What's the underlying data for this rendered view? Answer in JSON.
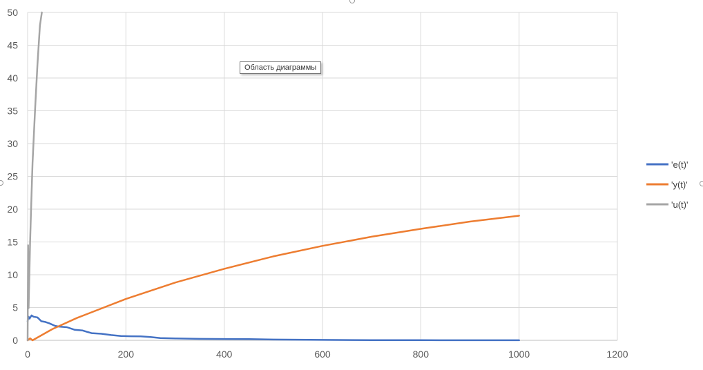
{
  "tooltip": {
    "text": "Область диаграммы"
  },
  "chart_data": {
    "type": "line",
    "title": "",
    "xlabel": "",
    "ylabel": "",
    "xlim": [
      0,
      1200
    ],
    "ylim": [
      0,
      50
    ],
    "xticks": [
      0,
      200,
      400,
      600,
      800,
      1000,
      1200
    ],
    "yticks": [
      0,
      5,
      10,
      15,
      20,
      25,
      30,
      35,
      40,
      45,
      50
    ],
    "grid": true,
    "legend_position": "right",
    "series": [
      {
        "name": "'e(t)'",
        "color": "#4472C4",
        "x": [
          0,
          2,
          4,
          8,
          12,
          20,
          24,
          28,
          36,
          44,
          56,
          64,
          80,
          96,
          112,
          130,
          150,
          170,
          190,
          210,
          230,
          250,
          270,
          300,
          350,
          400,
          450,
          500,
          600,
          700,
          800,
          900,
          1000
        ],
        "y": [
          2.9,
          3.6,
          3.3,
          3.8,
          3.6,
          3.5,
          3.2,
          2.9,
          2.8,
          2.6,
          2.2,
          2.1,
          2.0,
          1.6,
          1.5,
          1.1,
          1.0,
          0.8,
          0.65,
          0.62,
          0.6,
          0.5,
          0.35,
          0.28,
          0.22,
          0.2,
          0.18,
          0.12,
          0.06,
          0.03,
          0.02,
          0.01,
          0.01
        ]
      },
      {
        "name": "'y(t)'",
        "color": "#ED7D31",
        "x": [
          0,
          5,
          10,
          50,
          100,
          200,
          300,
          400,
          500,
          600,
          700,
          800,
          900,
          1000
        ],
        "y": [
          0,
          0.3,
          0,
          1.7,
          3.4,
          6.3,
          8.8,
          10.9,
          12.8,
          14.4,
          15.8,
          17.0,
          18.1,
          19.0
        ]
      },
      {
        "name": "'u(t)'",
        "color": "#A5A5A5",
        "x": [
          0,
          1,
          2,
          3,
          5,
          7,
          10,
          15,
          20,
          25,
          29
        ],
        "y": [
          0,
          14.5,
          4.9,
          8.0,
          15.0,
          20.0,
          27.0,
          35.0,
          42.0,
          48.0,
          50.0
        ]
      }
    ]
  }
}
